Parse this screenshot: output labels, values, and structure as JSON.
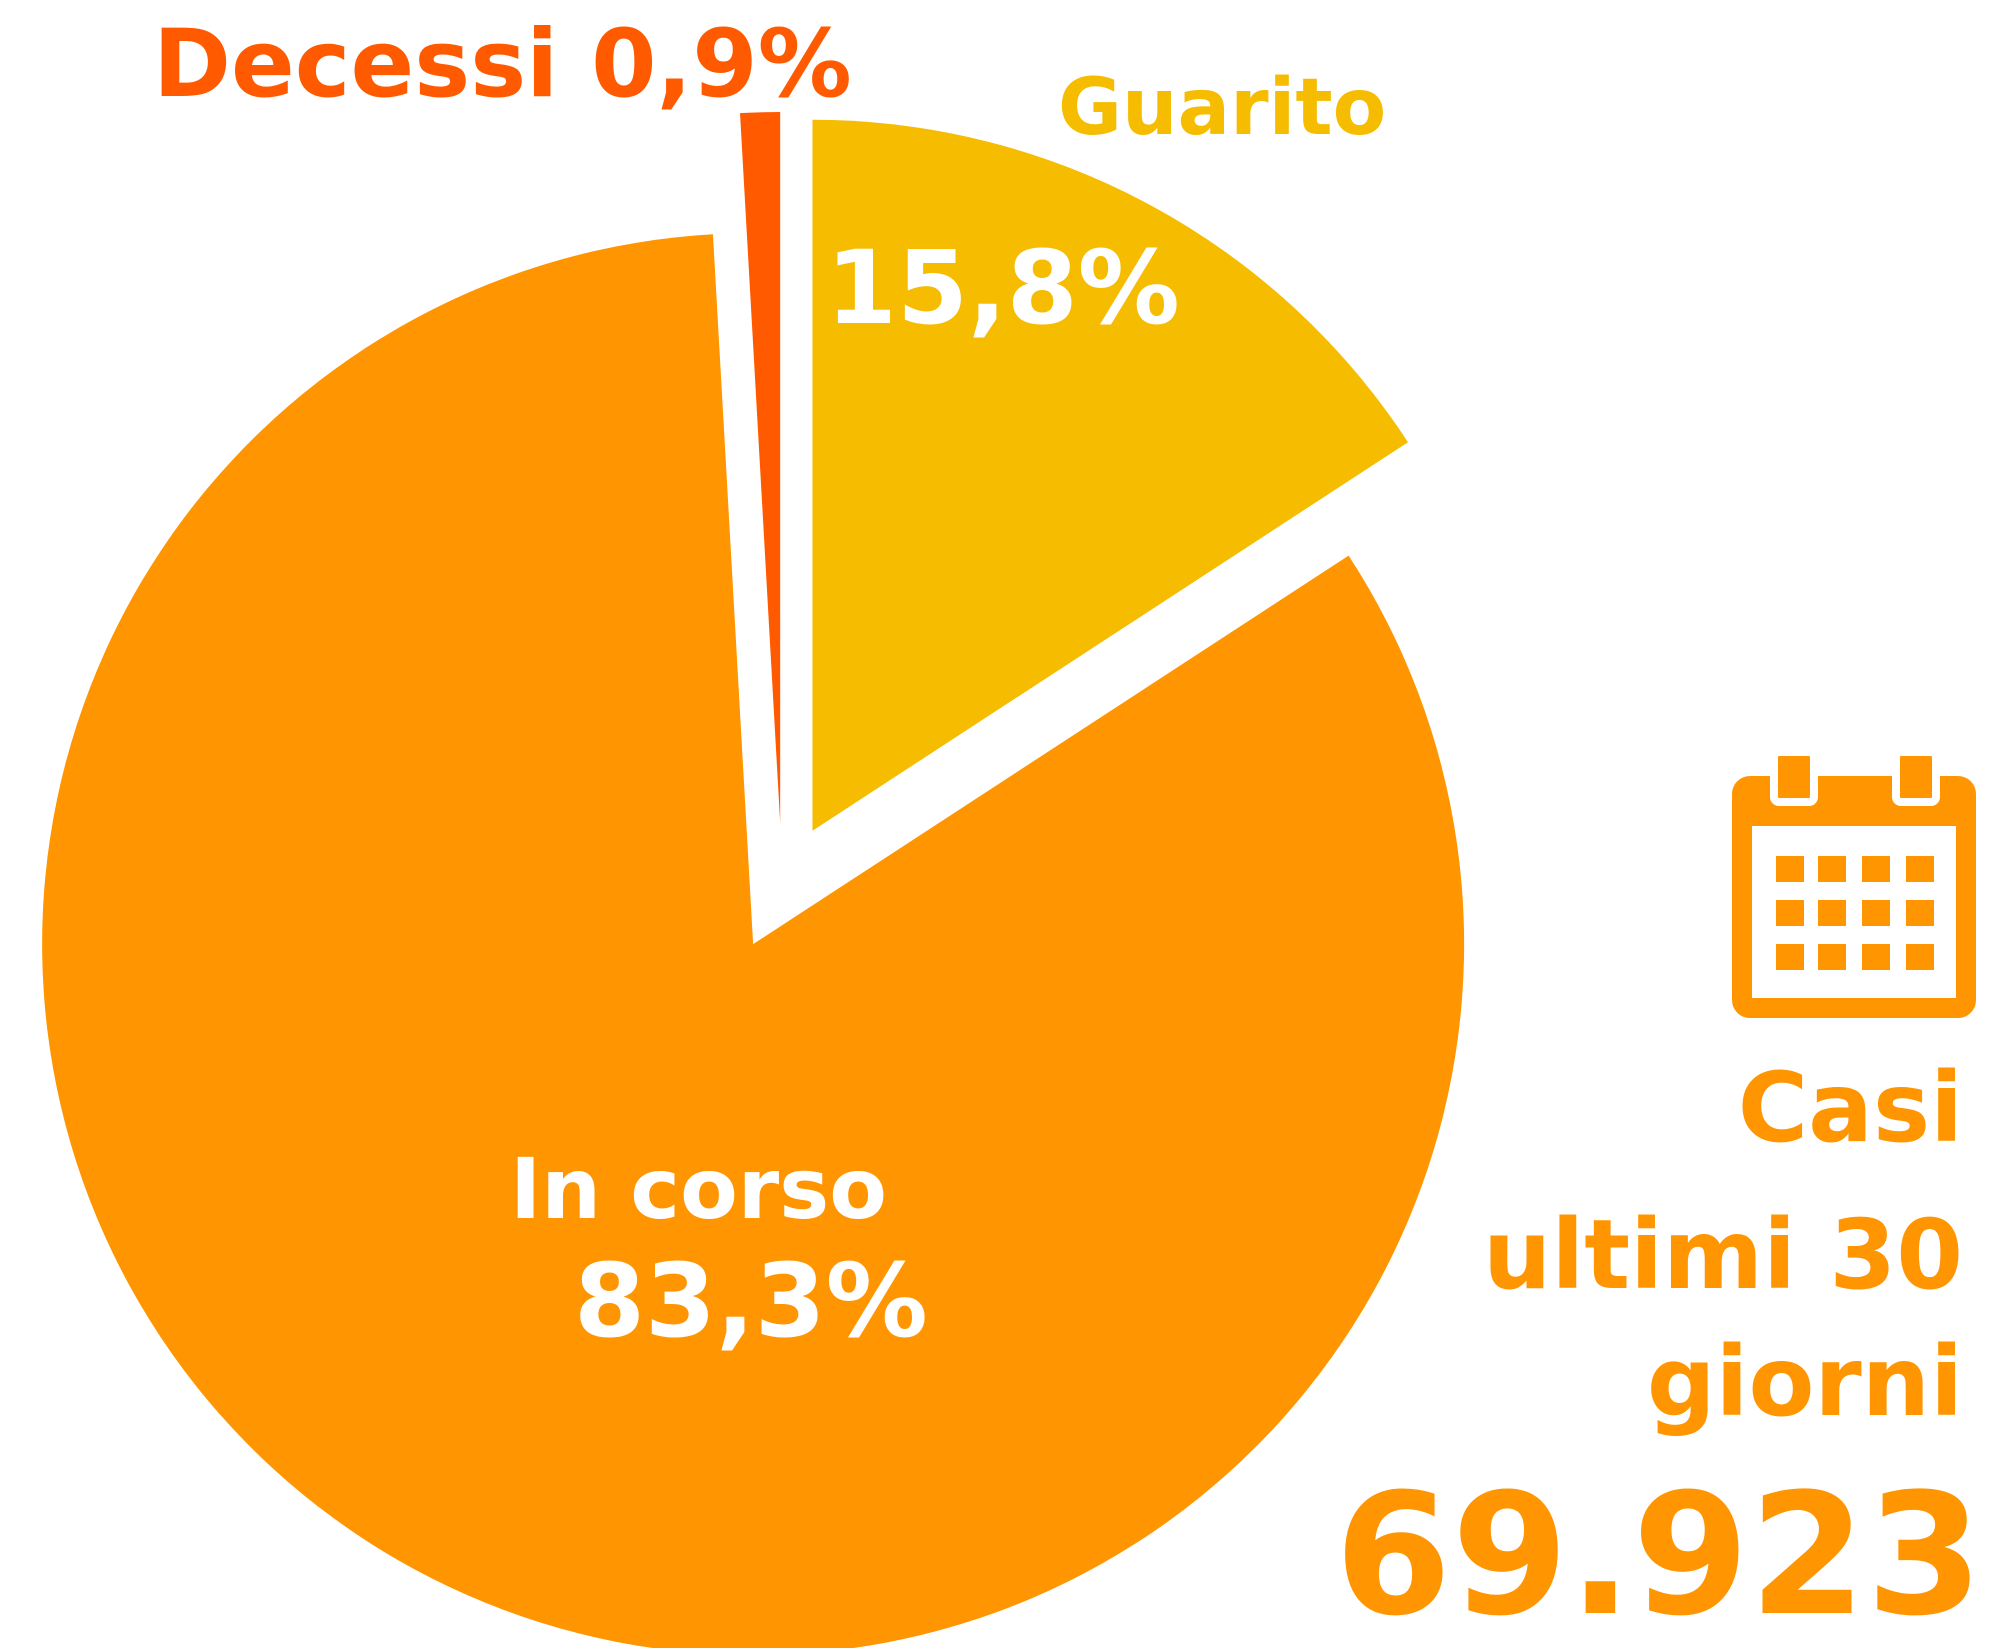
{
  "chart_data": {
    "type": "pie",
    "slices": [
      {
        "name": "Guarito",
        "value": 15.8,
        "value_label": "15,8%",
        "color": "#F5BC00"
      },
      {
        "name": "In corso",
        "value": 83.3,
        "value_label": "83,3%",
        "color": "#FF9500"
      },
      {
        "name": "Decessi",
        "value": 0.9,
        "value_label": "0,9%",
        "color": "#FF5A00"
      }
    ],
    "side_text": [
      "Casi",
      "ultimi 30",
      "giorni"
    ],
    "total": "69.923"
  }
}
